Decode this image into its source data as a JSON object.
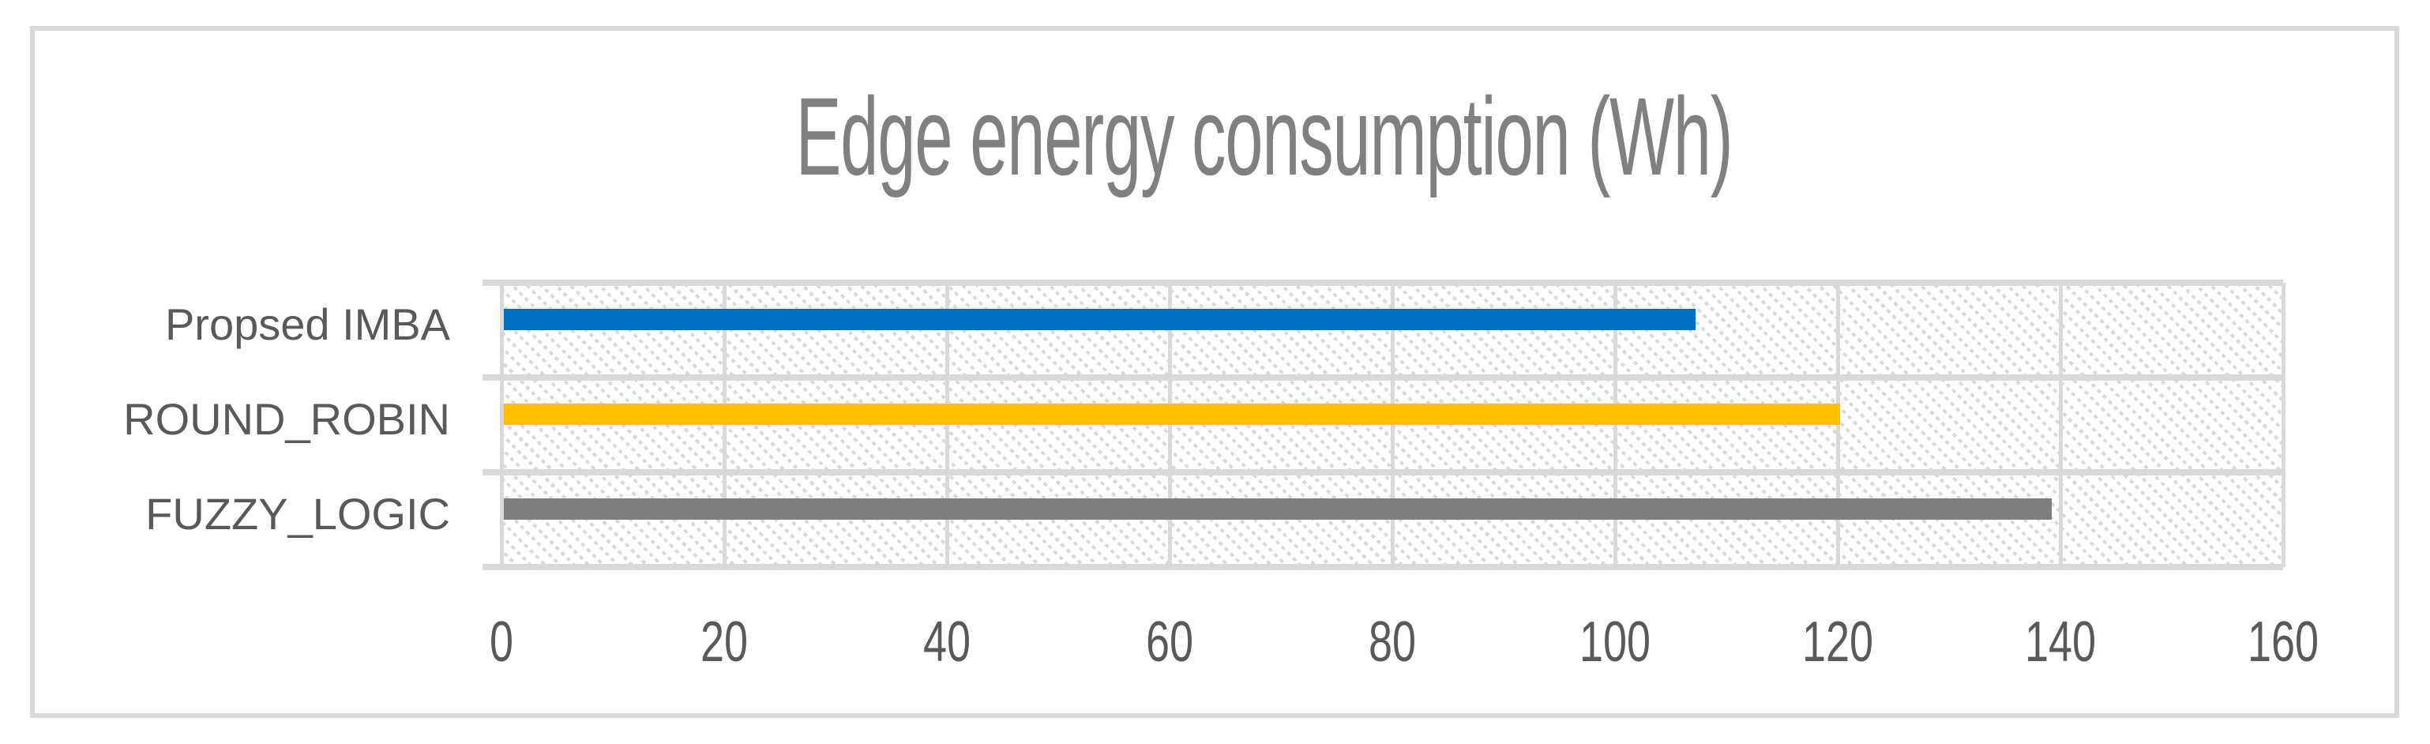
{
  "chart_data": {
    "type": "bar",
    "orientation": "horizontal",
    "title": "Edge energy consumption (Wh)",
    "categories": [
      "Propsed IMBA",
      "ROUND_ROBIN",
      "FUZZY_LOGIC"
    ],
    "values": [
      107,
      120,
      139
    ],
    "series_colors": [
      "#0070c0",
      "#ffc000",
      "#7f7f7f"
    ],
    "xlabel": "",
    "ylabel": "",
    "xlim": [
      0,
      160
    ],
    "x_ticks": [
      "0",
      "20",
      "40",
      "60",
      "80",
      "100",
      "120",
      "140",
      "160"
    ],
    "grid": "major vertical and horizontal gridlines, light gray",
    "legend_position": "none",
    "plot_area_fill": "light diagonal hatch pattern",
    "colors": {
      "grid": "#d9d9d9",
      "frame_border": "#d9d9d9",
      "title_text": "#808080",
      "axis_text": "#595959",
      "background": "#ffffff"
    }
  }
}
